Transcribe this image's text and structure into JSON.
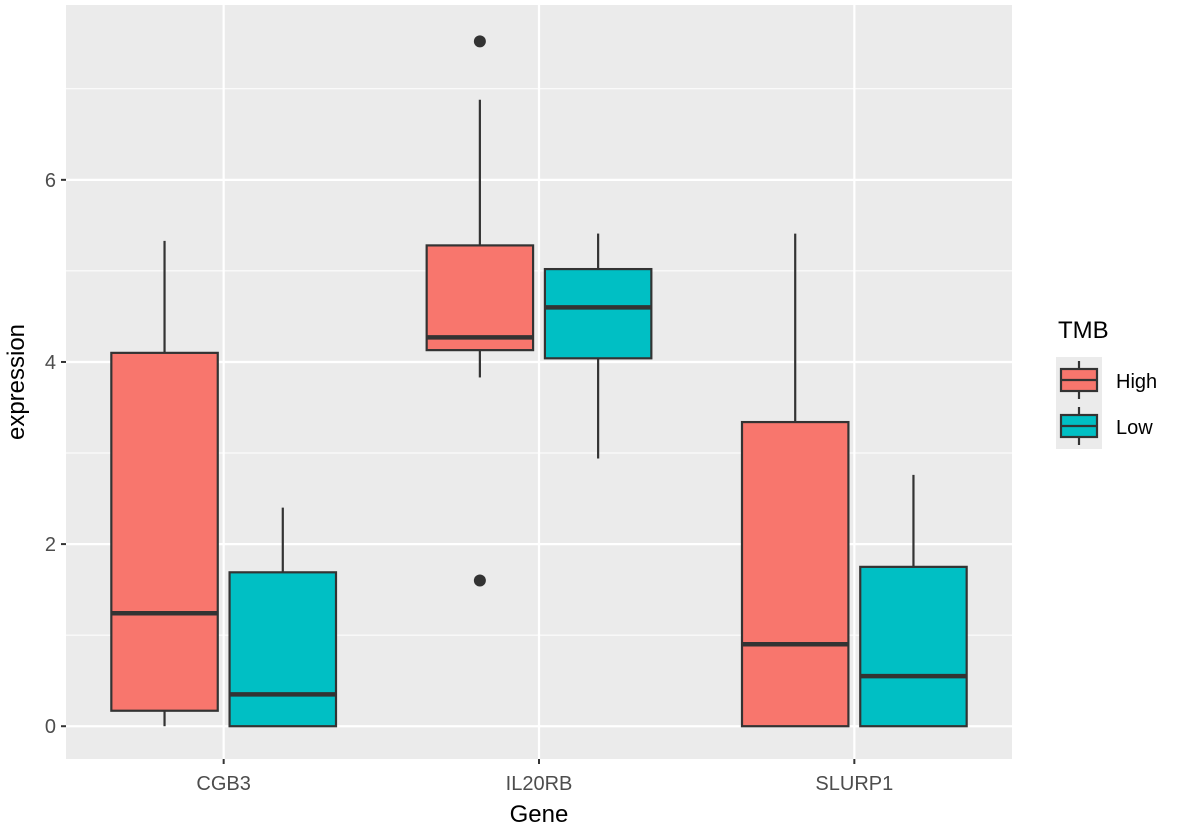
{
  "chart_data": {
    "type": "boxplot",
    "title": "",
    "xlabel": "Gene",
    "ylabel": "expression",
    "ylim": [
      -0.36,
      7.92
    ],
    "yticks": [
      0,
      2,
      4,
      6
    ],
    "grid": true,
    "legend": {
      "title": "TMB",
      "position": "right"
    },
    "categories": [
      "CGB3",
      "IL20RB",
      "SLURP1"
    ],
    "series": [
      {
        "name": "High",
        "color": "#F8766D",
        "boxes": [
          {
            "category": "CGB3",
            "whisker_low": 0.0,
            "q1": 0.17,
            "median": 1.24,
            "q3": 4.1,
            "whisker_high": 5.33,
            "outliers": []
          },
          {
            "category": "IL20RB",
            "whisker_low": 3.83,
            "q1": 4.13,
            "median": 4.27,
            "q3": 5.28,
            "whisker_high": 6.88,
            "outliers": [
              1.6,
              7.52
            ]
          },
          {
            "category": "SLURP1",
            "whisker_low": 0.0,
            "q1": 0.0,
            "median": 0.9,
            "q3": 3.34,
            "whisker_high": 5.41,
            "outliers": []
          }
        ]
      },
      {
        "name": "Low",
        "color": "#00BFC4",
        "boxes": [
          {
            "category": "CGB3",
            "whisker_low": 0.0,
            "q1": 0.0,
            "median": 0.35,
            "q3": 1.69,
            "whisker_high": 2.4,
            "outliers": []
          },
          {
            "category": "IL20RB",
            "whisker_low": 2.94,
            "q1": 4.04,
            "median": 4.6,
            "q3": 5.02,
            "whisker_high": 5.41,
            "outliers": []
          },
          {
            "category": "SLURP1",
            "whisker_low": 0.0,
            "q1": 0.0,
            "median": 0.55,
            "q3": 1.75,
            "whisker_high": 2.76,
            "outliers": []
          }
        ]
      }
    ]
  }
}
